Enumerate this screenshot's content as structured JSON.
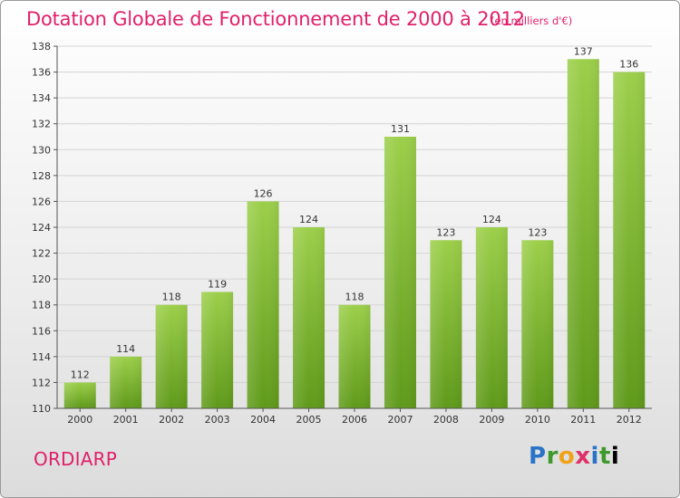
{
  "title": "Dotation Globale de Fonctionnement de 2000 à 2012",
  "unit": "(en milliers d'€)",
  "commune": "ORDIARP",
  "logo": {
    "letters": [
      "P",
      "r",
      "o",
      "x",
      "i",
      "t",
      "i"
    ]
  },
  "colors": {
    "title": "#e0206a",
    "bar_light": "#9ccf4a",
    "bar_dark": "#5f9a1a"
  },
  "chart_data": {
    "type": "bar",
    "title": "Dotation Globale de Fonctionnement de 2000 à 2012",
    "subtitle": "(en milliers d'€)",
    "xlabel": "",
    "ylabel": "",
    "categories": [
      "2000",
      "2001",
      "2002",
      "2003",
      "2004",
      "2005",
      "2006",
      "2007",
      "2008",
      "2009",
      "2010",
      "2011",
      "2012"
    ],
    "values": [
      112,
      114,
      118,
      119,
      126,
      124,
      118,
      131,
      123,
      124,
      123,
      137,
      136
    ],
    "ylim": [
      110,
      138
    ],
    "yticks": [
      110,
      112,
      114,
      116,
      118,
      120,
      122,
      124,
      126,
      128,
      130,
      132,
      134,
      136,
      138
    ],
    "grid": true,
    "legend": "none"
  }
}
